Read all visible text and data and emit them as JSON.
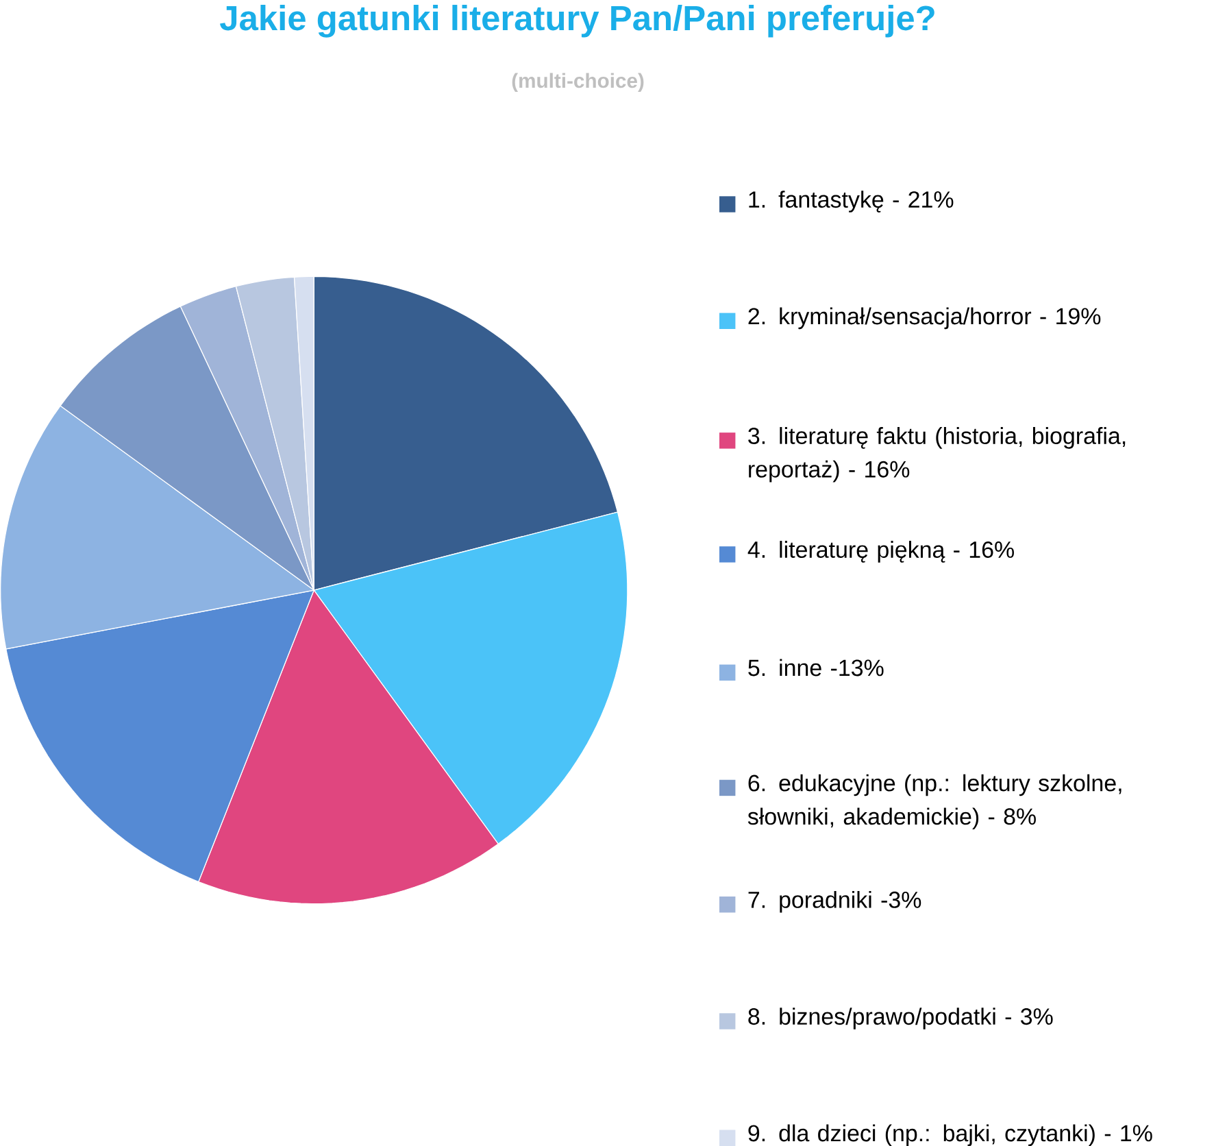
{
  "chart_data": {
    "type": "pie",
    "title": "Jakie gatunki literatury Pan/Pani preferuje?",
    "subtitle": "(multi-choice)",
    "categories": [
      "1. fantastykę - 21%",
      "2. kryminał/sensacja/horror - 19%",
      "3. literaturę faktu (historia, biografia, reportaż) - 16%",
      "4. literaturę piękną - 16%",
      "5. inne  -13%",
      "6. edukacyjne (np.: lektury szkolne, słowniki, akademickie) - 8%",
      "7. poradniki -3%",
      "8. biznes/prawo/podatki - 3%",
      "9. dla dzieci (np.: bajki, czytanki) - 1%"
    ],
    "values": [
      21,
      19,
      16,
      16,
      13,
      8,
      3,
      3,
      1
    ],
    "colors": [
      "#375e8f",
      "#4bc3f8",
      "#e0467f",
      "#558ad4",
      "#8db3e2",
      "#7b98c6",
      "#a0b4d8",
      "#b8c7e0",
      "#d6dff0"
    ],
    "legend": "right"
  }
}
